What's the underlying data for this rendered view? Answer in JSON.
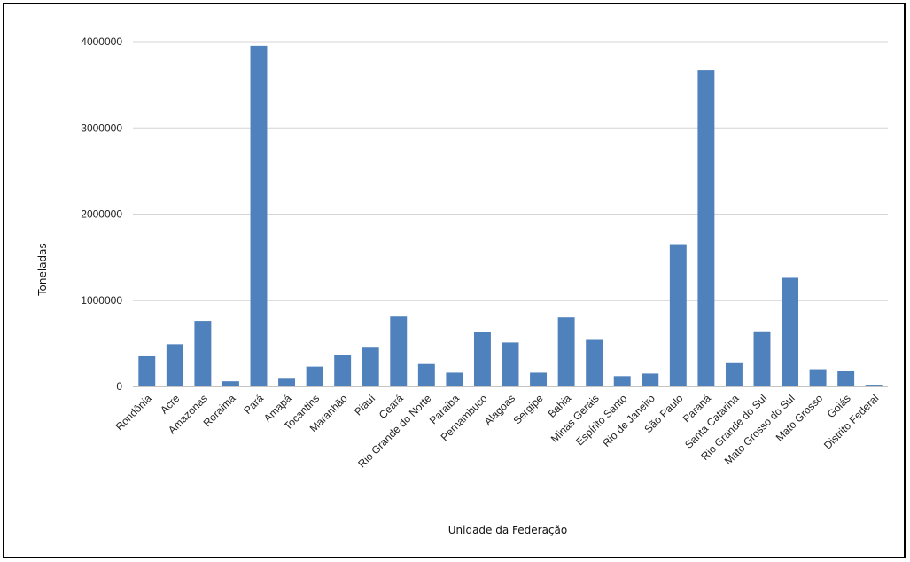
{
  "chart_data": {
    "type": "bar",
    "xlabel": "Unidade da Federação",
    "ylabel": "Toneladas",
    "ylim": [
      0,
      4000000
    ],
    "yticks": [
      0,
      1000000,
      2000000,
      3000000,
      4000000
    ],
    "ytick_labels": [
      "0",
      "1000000",
      "2000000",
      "3000000",
      "4000000"
    ],
    "grid": true,
    "legend": "none",
    "bar_color": "#4f81bd",
    "categories": [
      "Rondônia",
      "Acre",
      "Amazonas",
      "Roraima",
      "Pará",
      "Amapá",
      "Tocantins",
      "Maranhão",
      "Piauí",
      "Ceará",
      "Rio Grande do Norte",
      "Paraiba",
      "Pernambuco",
      "Alagoas",
      "Sergipe",
      "Bahia",
      "Minas Gerais",
      "Espírito Santo",
      "Rio de Janeiro",
      "São Paulo",
      "Paraná",
      "Santa Catarina",
      "Rio Grande do Sul",
      "Mato Grosso do Sul",
      "Mato Grosso",
      "Goiás",
      "Distrito Federal"
    ],
    "values": [
      350000,
      490000,
      760000,
      60000,
      3950000,
      100000,
      230000,
      360000,
      450000,
      810000,
      260000,
      160000,
      630000,
      510000,
      160000,
      800000,
      550000,
      120000,
      150000,
      1650000,
      3670000,
      280000,
      640000,
      1260000,
      200000,
      180000,
      20000
    ]
  }
}
